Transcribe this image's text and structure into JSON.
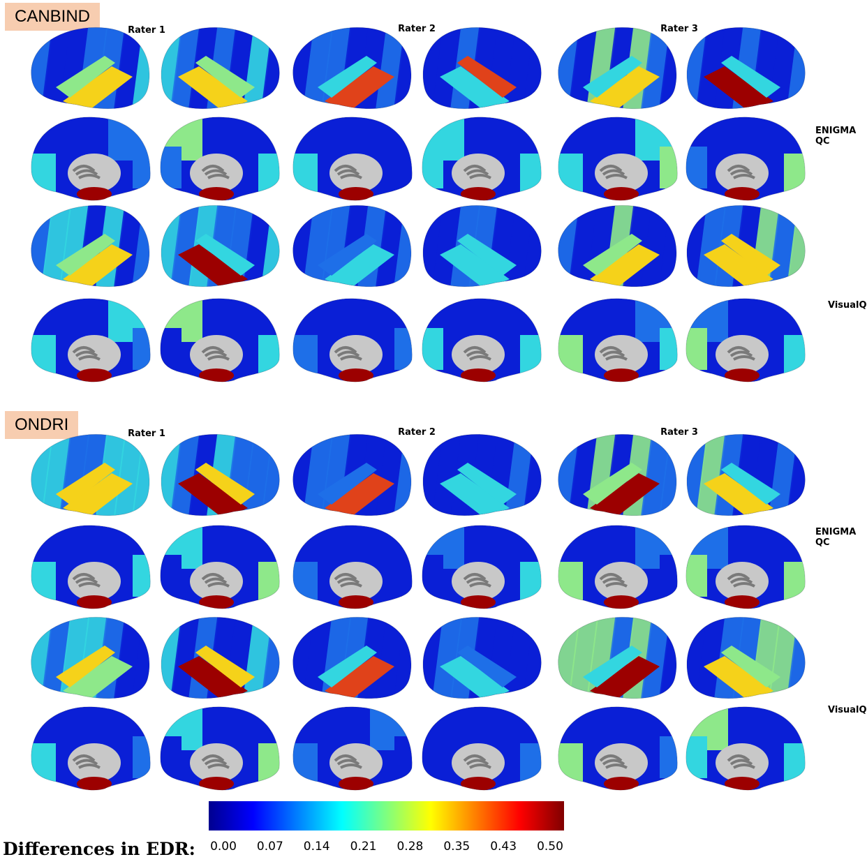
{
  "sections": [
    {
      "badge": "CANBIND",
      "raters": [
        "Rater 1",
        "Rater 2",
        "Rater 3"
      ],
      "methods": [
        "ENIGMA QC",
        "VisualQC"
      ]
    },
    {
      "badge": "ONDRI",
      "raters": [
        "Rater 1",
        "Rater 2",
        "Rater 3"
      ],
      "methods": [
        "ENIGMA QC",
        "VisualQC"
      ]
    }
  ],
  "colorbar": {
    "label": "Differences in EDR:",
    "ticks": [
      "0.00",
      "0.07",
      "0.14",
      "0.21",
      "0.28",
      "0.35",
      "0.43",
      "0.50"
    ],
    "colors": [
      "#00008f",
      "#0000ff",
      "#007fff",
      "#00ffff",
      "#7fff7f",
      "#ffff00",
      "#ff7f00",
      "#ff0000",
      "#800000"
    ]
  },
  "brain_views": {
    "colors": {
      "low": "#0a1fd6",
      "mid_low": "#1e6fe8",
      "mid": "#33d6e0",
      "mid_high": "#8ee88a",
      "high": "#f5d21a",
      "very_high": "#e0421a",
      "max": "#9c0000",
      "gray_light": "#c8c8c8",
      "gray_dark": "#7a7a7a"
    }
  }
}
